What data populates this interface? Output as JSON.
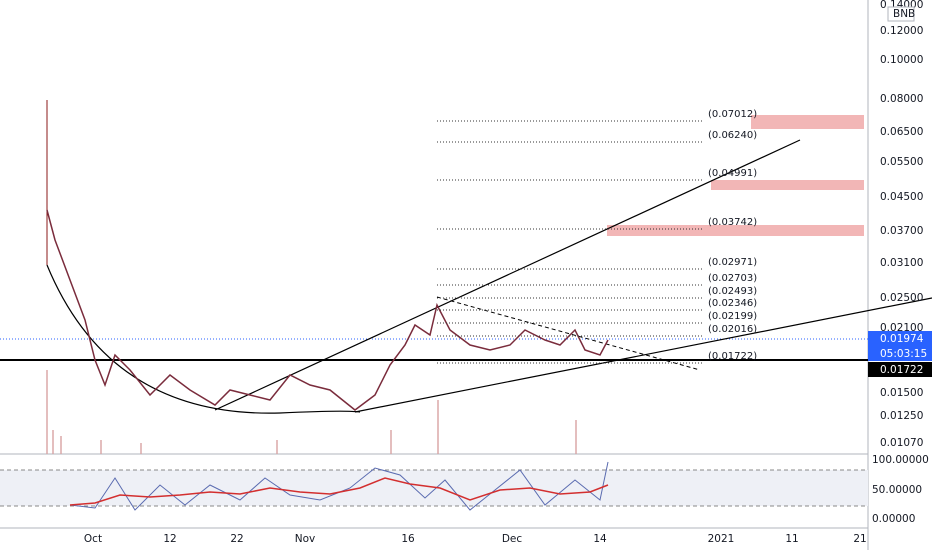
{
  "price_axis": {
    "labels": [
      "0.14000",
      "0.12000",
      "0.10000",
      "0.08000",
      "0.06500",
      "0.05500",
      "0.04500",
      "0.03700",
      "0.03100",
      "0.02500",
      "0.02100",
      "0.01500",
      "0.01250",
      "0.01070"
    ],
    "currency": "BNB"
  },
  "price_tags": {
    "last_price": "0.01974",
    "countdown": "05:03:15",
    "support": "0.01722"
  },
  "fib_levels": [
    "(0.07012)",
    "(0.06240)",
    "(0.04991)",
    "(0.03742)",
    "(0.02971)",
    "(0.02703)",
    "(0.02493)",
    "(0.02346)",
    "(0.02199)",
    "(0.02016)",
    "(0.01722)"
  ],
  "oscillator_axis": {
    "labels": [
      "100.00000",
      "50.00000",
      "0.00000"
    ]
  },
  "time_axis": {
    "labels": [
      "Oct",
      "12",
      "22",
      "Nov",
      "16",
      "Dec",
      "14",
      "2021",
      "11",
      "21"
    ]
  }
}
